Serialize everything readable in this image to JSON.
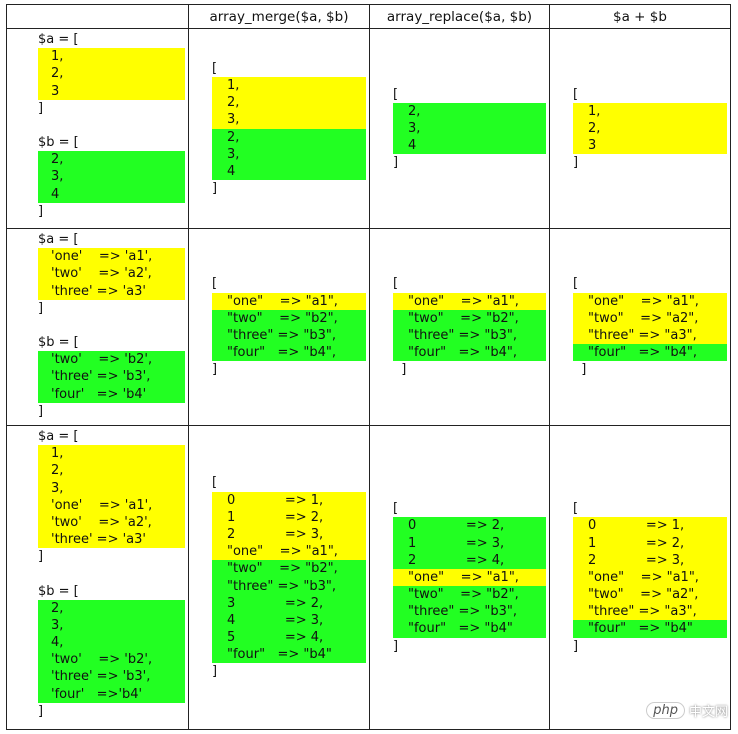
{
  "colors": {
    "a": "#ffff00",
    "b": "#22ff22"
  },
  "headers": [
    "",
    "array_merge($a, $b)",
    "array_replace($a, $b)",
    "$a + $b"
  ],
  "rows": [
    {
      "source": [
        {
          "open": "$a = [",
          "blocks": [
            {
              "color": "a",
              "lines": [
                "1,",
                "2,",
                "3"
              ]
            }
          ],
          "close": "]"
        },
        {
          "open": "$b = [",
          "blocks": [
            {
              "color": "b",
              "lines": [
                "2,",
                "3,",
                "4"
              ]
            }
          ],
          "close": "]"
        }
      ],
      "results": [
        {
          "open": "[",
          "blocks": [
            {
              "color": "a",
              "lines": [
                "1,",
                "2,",
                "3,"
              ]
            },
            {
              "color": "b",
              "lines": [
                "2,",
                "3,",
                "4"
              ]
            }
          ],
          "close": "]"
        },
        {
          "open": "[",
          "blocks": [
            {
              "color": "b",
              "lines": [
                "2,",
                "3,",
                "4"
              ]
            }
          ],
          "close": "]"
        },
        {
          "open": "[",
          "blocks": [
            {
              "color": "a",
              "lines": [
                "1,",
                "2,",
                "3"
              ]
            }
          ],
          "close": "]"
        }
      ]
    },
    {
      "source": [
        {
          "open": "$a = [",
          "blocks": [
            {
              "color": "a",
              "lines": [
                "'one'    => 'a1',",
                "'two'    => 'a2',",
                "'three' => 'a3'"
              ]
            }
          ],
          "close": "]"
        },
        {
          "open": "$b = [",
          "blocks": [
            {
              "color": "b",
              "lines": [
                "'two'    => 'b2',",
                "'three' => 'b3',",
                "'four'   => 'b4'"
              ]
            }
          ],
          "close": "]"
        }
      ],
      "results": [
        {
          "open": "[",
          "blocks": [
            {
              "color": "a",
              "lines": [
                "\"one\"    => \"a1\","
              ]
            },
            {
              "color": "b",
              "lines": [
                "\"two\"    => \"b2\",",
                "\"three\" => \"b3\",",
                "\"four\"   => \"b4\","
              ]
            }
          ],
          "close": "]"
        },
        {
          "open": "[",
          "blocks": [
            {
              "color": "a",
              "lines": [
                "\"one\"    => \"a1\","
              ]
            },
            {
              "color": "b",
              "lines": [
                "\"two\"    => \"b2\",",
                "\"three\" => \"b3\",",
                "\"four\"   => \"b4\","
              ]
            }
          ],
          "close": "  ]"
        },
        {
          "open": "[",
          "blocks": [
            {
              "color": "a",
              "lines": [
                "\"one\"    => \"a1\",",
                "\"two\"    => \"a2\",",
                "\"three\" => \"a3\","
              ]
            },
            {
              "color": "b",
              "lines": [
                "\"four\"   => \"b4\","
              ]
            }
          ],
          "close": "  ]"
        }
      ]
    },
    {
      "source": [
        {
          "open": "$a = [",
          "blocks": [
            {
              "color": "a",
              "lines": [
                "1,",
                "2,",
                "3,",
                "'one'    => 'a1',",
                "'two'    => 'a2',",
                "'three' => 'a3'"
              ]
            }
          ],
          "close": "]"
        },
        {
          "open": "$b = [",
          "blocks": [
            {
              "color": "b",
              "lines": [
                "2,",
                "3,",
                "4,",
                "'two'    => 'b2',",
                "'three' => 'b3',",
                "'four'   =>'b4'"
              ]
            }
          ],
          "close": "]"
        }
      ],
      "results": [
        {
          "open": "[",
          "blocks": [
            {
              "color": "a",
              "lines": [
                "0            => 1,",
                "1            => 2,",
                "2            => 3,",
                "\"one\"    => \"a1\","
              ]
            },
            {
              "color": "b",
              "lines": [
                "\"two\"    => \"b2\",",
                "\"three\" => \"b3\",",
                "3            => 2,",
                "4            => 3,",
                "5            => 4,",
                "\"four\"   => \"b4\""
              ]
            }
          ],
          "close": "]"
        },
        {
          "open": "[",
          "blocks": [
            {
              "color": "b",
              "lines": [
                "0            => 2,",
                "1            => 3,",
                "2            => 4,"
              ]
            },
            {
              "color": "a",
              "lines": [
                "\"one\"    => \"a1\","
              ]
            },
            {
              "color": "b",
              "lines": [
                "\"two\"    => \"b2\",",
                "\"three\" => \"b3\",",
                "\"four\"   => \"b4\""
              ]
            }
          ],
          "close": "]"
        },
        {
          "open": "[",
          "blocks": [
            {
              "color": "a",
              "lines": [
                "0            => 1,",
                "1            => 2,",
                "2            => 3,",
                "\"one\"    => \"a1\",",
                "\"two\"    => \"a2\",",
                "\"three\" => \"a3\","
              ]
            },
            {
              "color": "b",
              "lines": [
                "\"four\"   => \"b4\""
              ]
            }
          ],
          "close": "]"
        }
      ]
    }
  ],
  "watermark": {
    "logo": "php",
    "text": "中文网"
  }
}
